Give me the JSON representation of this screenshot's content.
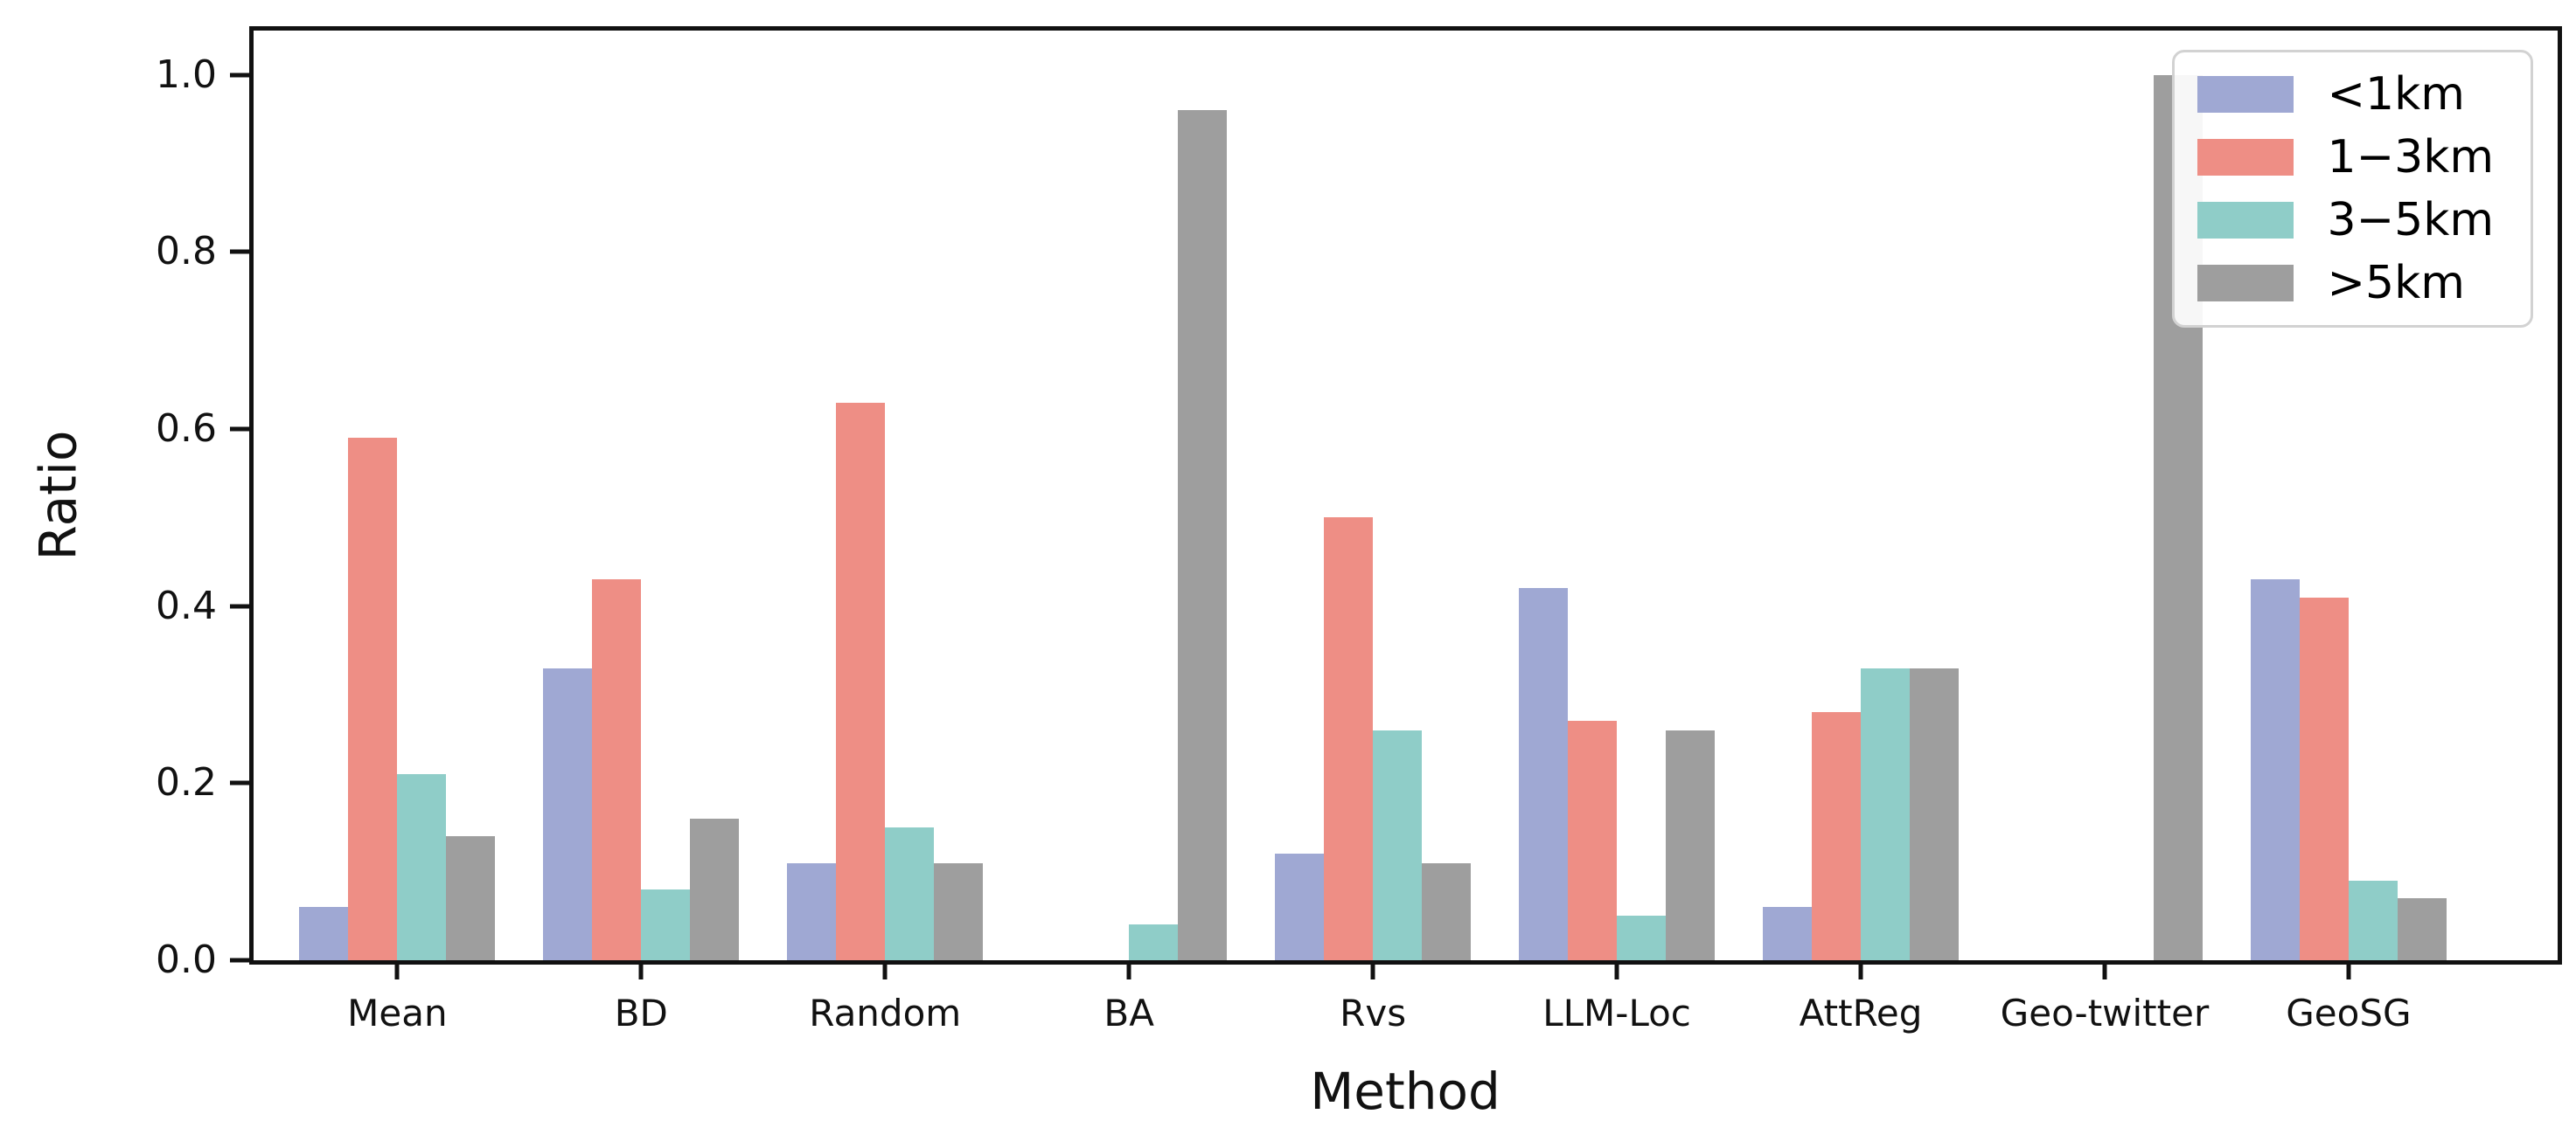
{
  "figure": {
    "title": "",
    "ylabel": "Ratio",
    "xlabel": "Method",
    "ymax": 1.05,
    "yticks": [
      {
        "value": 0.0,
        "label": "0.0"
      },
      {
        "value": 0.2,
        "label": "0.2"
      },
      {
        "value": 0.4,
        "label": "0.4"
      },
      {
        "value": 0.6,
        "label": "0.6"
      },
      {
        "value": 0.8,
        "label": "0.8"
      },
      {
        "value": 1.0,
        "label": "1.0"
      }
    ]
  },
  "chart_data": {
    "type": "bar",
    "title": "",
    "xlabel": "Method",
    "ylabel": "Ratio",
    "ylim": [
      0,
      1.05
    ],
    "grid": false,
    "legend_position": "upper right",
    "categories": [
      "Mean",
      "BD",
      "Random",
      "BA",
      "Rvs",
      "LLM-Loc",
      "AttReg",
      "Geo-twitter",
      "GeoSG"
    ],
    "series": [
      {
        "name": "<1km",
        "color": "#9fa8d3",
        "values": [
          0.06,
          0.33,
          0.11,
          0.0,
          0.12,
          0.42,
          0.06,
          0.0,
          0.43
        ]
      },
      {
        "name": "1−3km",
        "color": "#ee8e85",
        "values": [
          0.59,
          0.43,
          0.63,
          0.0,
          0.5,
          0.27,
          0.28,
          0.0,
          0.41
        ]
      },
      {
        "name": "3−5km",
        "color": "#8fcdc8",
        "values": [
          0.21,
          0.08,
          0.15,
          0.04,
          0.26,
          0.05,
          0.33,
          0.0,
          0.09
        ]
      },
      {
        "name": ">5km",
        "color": "#9e9e9e",
        "values": [
          0.14,
          0.16,
          0.11,
          0.96,
          0.11,
          0.26,
          0.33,
          1.0,
          0.07
        ]
      }
    ]
  }
}
